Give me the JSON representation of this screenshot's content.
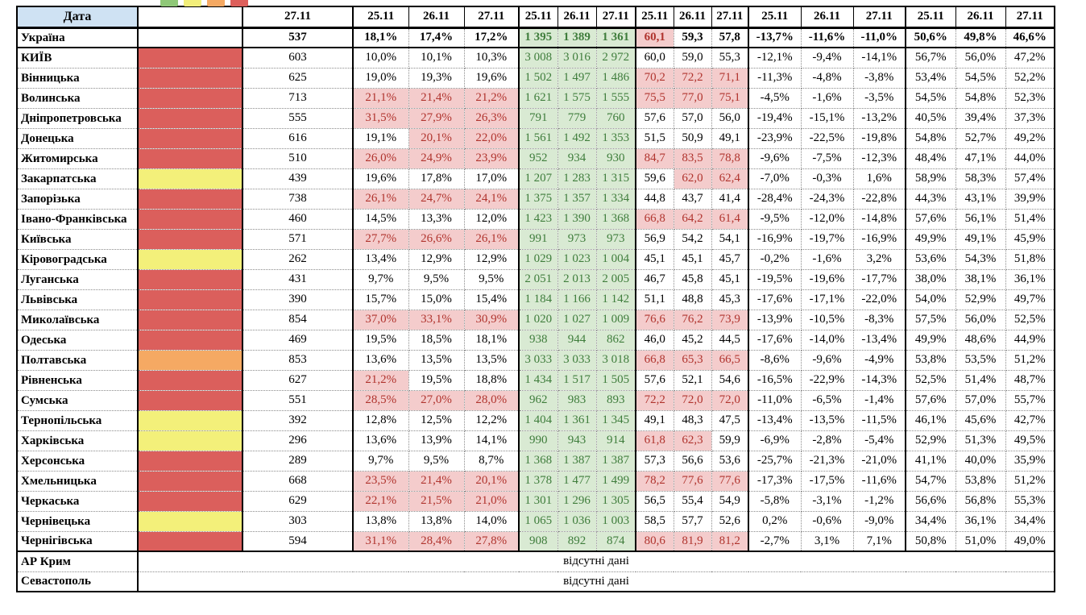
{
  "corner_label": "Дата",
  "no_data_text": "відсутні дані",
  "legend_swatches": [
    {
      "name": "green-legend-swatch",
      "color": "#8fc878"
    },
    {
      "name": "yellow-legend-swatch",
      "color": "#f2ee7a"
    },
    {
      "name": "orange-legend-swatch",
      "color": "#f5a963"
    },
    {
      "name": "red-legend-swatch",
      "color": "#dd5f5b"
    }
  ],
  "status_palette": {
    "red": "#db5f5c",
    "yellow": "#f3f07a",
    "orange": "#f5a963"
  },
  "cell_colors": {
    "header_bg": "#cfe2f3",
    "pink_bg": "#f4cccc",
    "red_text": "#b0342e",
    "green_bg": "#d9ead3",
    "green_text": "#3f7d3c"
  },
  "header": {
    "single_date": "27.11",
    "group_dates": [
      "25.11",
      "26.11",
      "27.11"
    ]
  },
  "rows": [
    {
      "name": "Україна",
      "status": "",
      "val": "537",
      "pct3": [
        "18,1%",
        "17,4%",
        "17,2%"
      ],
      "pct3_hl": [
        0,
        0,
        0
      ],
      "cnt3": [
        "1 395",
        "1 389",
        "1 361"
      ],
      "rate3": [
        "60,1",
        "59,3",
        "57,8"
      ],
      "rate3_hl": [
        1,
        0,
        0
      ],
      "chg3": [
        "-13,7%",
        "-11,6%",
        "-11,0%"
      ],
      "shr3": [
        "50,6%",
        "49,8%",
        "46,6%"
      ]
    },
    {
      "name": "КИЇВ",
      "status": "red",
      "val": "603",
      "pct3": [
        "10,0%",
        "10,1%",
        "10,3%"
      ],
      "pct3_hl": [
        0,
        0,
        0
      ],
      "cnt3": [
        "3 008",
        "3 016",
        "2 972"
      ],
      "rate3": [
        "60,0",
        "59,0",
        "55,3"
      ],
      "rate3_hl": [
        0,
        0,
        0
      ],
      "chg3": [
        "-12,1%",
        "-9,4%",
        "-14,1%"
      ],
      "shr3": [
        "56,7%",
        "56,0%",
        "47,2%"
      ]
    },
    {
      "name": "Вінницька",
      "status": "red",
      "val": "625",
      "pct3": [
        "19,0%",
        "19,3%",
        "19,6%"
      ],
      "pct3_hl": [
        0,
        0,
        0
      ],
      "cnt3": [
        "1 502",
        "1 497",
        "1 486"
      ],
      "rate3": [
        "70,2",
        "72,2",
        "71,1"
      ],
      "rate3_hl": [
        1,
        1,
        1
      ],
      "chg3": [
        "-11,3%",
        "-4,8%",
        "-3,8%"
      ],
      "shr3": [
        "53,4%",
        "54,5%",
        "52,2%"
      ]
    },
    {
      "name": "Волинська",
      "status": "red",
      "val": "713",
      "pct3": [
        "21,1%",
        "21,4%",
        "21,2%"
      ],
      "pct3_hl": [
        1,
        1,
        1
      ],
      "cnt3": [
        "1 621",
        "1 575",
        "1 555"
      ],
      "rate3": [
        "75,5",
        "77,0",
        "75,1"
      ],
      "rate3_hl": [
        1,
        1,
        1
      ],
      "chg3": [
        "-4,5%",
        "-1,6%",
        "-3,5%"
      ],
      "shr3": [
        "54,5%",
        "54,8%",
        "52,3%"
      ]
    },
    {
      "name": "Дніпропетровська",
      "status": "red",
      "val": "555",
      "pct3": [
        "31,5%",
        "27,9%",
        "26,3%"
      ],
      "pct3_hl": [
        1,
        1,
        1
      ],
      "cnt3": [
        "791",
        "779",
        "760"
      ],
      "rate3": [
        "57,6",
        "57,0",
        "56,0"
      ],
      "rate3_hl": [
        0,
        0,
        0
      ],
      "chg3": [
        "-19,4%",
        "-15,1%",
        "-13,2%"
      ],
      "shr3": [
        "40,5%",
        "39,4%",
        "37,3%"
      ]
    },
    {
      "name": "Донецька",
      "status": "red",
      "val": "616",
      "pct3": [
        "19,1%",
        "20,1%",
        "22,0%"
      ],
      "pct3_hl": [
        0,
        1,
        1
      ],
      "cnt3": [
        "1 561",
        "1 492",
        "1 353"
      ],
      "rate3": [
        "51,5",
        "50,9",
        "49,1"
      ],
      "rate3_hl": [
        0,
        0,
        0
      ],
      "chg3": [
        "-23,9%",
        "-22,5%",
        "-19,8%"
      ],
      "shr3": [
        "54,8%",
        "52,7%",
        "49,2%"
      ]
    },
    {
      "name": "Житомирська",
      "status": "red",
      "val": "510",
      "pct3": [
        "26,0%",
        "24,9%",
        "23,9%"
      ],
      "pct3_hl": [
        1,
        1,
        1
      ],
      "cnt3": [
        "952",
        "934",
        "930"
      ],
      "rate3": [
        "84,7",
        "83,5",
        "78,8"
      ],
      "rate3_hl": [
        1,
        1,
        1
      ],
      "chg3": [
        "-9,6%",
        "-7,5%",
        "-12,3%"
      ],
      "shr3": [
        "48,4%",
        "47,1%",
        "44,0%"
      ]
    },
    {
      "name": "Закарпатська",
      "status": "yellow",
      "val": "439",
      "pct3": [
        "19,6%",
        "17,8%",
        "17,0%"
      ],
      "pct3_hl": [
        0,
        0,
        0
      ],
      "cnt3": [
        "1 207",
        "1 283",
        "1 315"
      ],
      "rate3": [
        "59,6",
        "62,0",
        "62,4"
      ],
      "rate3_hl": [
        0,
        1,
        1
      ],
      "chg3": [
        "-7,0%",
        "-0,3%",
        "1,6%"
      ],
      "shr3": [
        "58,9%",
        "58,3%",
        "57,4%"
      ]
    },
    {
      "name": "Запорізька",
      "status": "red",
      "val": "738",
      "pct3": [
        "26,1%",
        "24,7%",
        "24,1%"
      ],
      "pct3_hl": [
        1,
        1,
        1
      ],
      "cnt3": [
        "1 375",
        "1 357",
        "1 334"
      ],
      "rate3": [
        "44,8",
        "43,7",
        "41,4"
      ],
      "rate3_hl": [
        0,
        0,
        0
      ],
      "chg3": [
        "-28,4%",
        "-24,3%",
        "-22,8%"
      ],
      "shr3": [
        "44,3%",
        "43,1%",
        "39,9%"
      ]
    },
    {
      "name": "Івано-Франківська",
      "status": "red",
      "val": "460",
      "pct3": [
        "14,5%",
        "13,3%",
        "12,0%"
      ],
      "pct3_hl": [
        0,
        0,
        0
      ],
      "cnt3": [
        "1 423",
        "1 390",
        "1 368"
      ],
      "rate3": [
        "66,8",
        "64,2",
        "61,4"
      ],
      "rate3_hl": [
        1,
        1,
        1
      ],
      "chg3": [
        "-9,5%",
        "-12,0%",
        "-14,8%"
      ],
      "shr3": [
        "57,6%",
        "56,1%",
        "51,4%"
      ]
    },
    {
      "name": "Київська",
      "status": "red",
      "val": "571",
      "pct3": [
        "27,7%",
        "26,6%",
        "26,1%"
      ],
      "pct3_hl": [
        1,
        1,
        1
      ],
      "cnt3": [
        "991",
        "973",
        "973"
      ],
      "rate3": [
        "56,9",
        "54,2",
        "54,1"
      ],
      "rate3_hl": [
        0,
        0,
        0
      ],
      "chg3": [
        "-16,9%",
        "-19,7%",
        "-16,9%"
      ],
      "shr3": [
        "49,9%",
        "49,1%",
        "45,9%"
      ]
    },
    {
      "name": "Кіровоградська",
      "status": "yellow",
      "val": "262",
      "pct3": [
        "13,4%",
        "12,9%",
        "12,9%"
      ],
      "pct3_hl": [
        0,
        0,
        0
      ],
      "cnt3": [
        "1 029",
        "1 023",
        "1 004"
      ],
      "rate3": [
        "45,1",
        "45,1",
        "45,7"
      ],
      "rate3_hl": [
        0,
        0,
        0
      ],
      "chg3": [
        "-0,2%",
        "-1,6%",
        "3,2%"
      ],
      "shr3": [
        "53,6%",
        "54,3%",
        "51,8%"
      ]
    },
    {
      "name": "Луганська",
      "status": "red",
      "val": "431",
      "pct3": [
        "9,7%",
        "9,5%",
        "9,5%"
      ],
      "pct3_hl": [
        0,
        0,
        0
      ],
      "cnt3": [
        "2 051",
        "2 013",
        "2 005"
      ],
      "rate3": [
        "46,7",
        "45,8",
        "45,1"
      ],
      "rate3_hl": [
        0,
        0,
        0
      ],
      "chg3": [
        "-19,5%",
        "-19,6%",
        "-17,7%"
      ],
      "shr3": [
        "38,0%",
        "38,1%",
        "36,1%"
      ]
    },
    {
      "name": "Львівська",
      "status": "red",
      "val": "390",
      "pct3": [
        "15,7%",
        "15,0%",
        "15,4%"
      ],
      "pct3_hl": [
        0,
        0,
        0
      ],
      "cnt3": [
        "1 184",
        "1 166",
        "1 142"
      ],
      "rate3": [
        "51,1",
        "48,8",
        "45,3"
      ],
      "rate3_hl": [
        0,
        0,
        0
      ],
      "chg3": [
        "-17,6%",
        "-17,1%",
        "-22,0%"
      ],
      "shr3": [
        "54,0%",
        "52,9%",
        "49,7%"
      ]
    },
    {
      "name": "Миколаївська",
      "status": "red",
      "val": "854",
      "pct3": [
        "37,0%",
        "33,1%",
        "30,9%"
      ],
      "pct3_hl": [
        1,
        1,
        1
      ],
      "cnt3": [
        "1 020",
        "1 027",
        "1 009"
      ],
      "rate3": [
        "76,6",
        "76,2",
        "73,9"
      ],
      "rate3_hl": [
        1,
        1,
        1
      ],
      "chg3": [
        "-13,9%",
        "-10,5%",
        "-8,3%"
      ],
      "shr3": [
        "57,5%",
        "56,0%",
        "52,5%"
      ]
    },
    {
      "name": "Одеська",
      "status": "red",
      "val": "469",
      "pct3": [
        "19,5%",
        "18,5%",
        "18,1%"
      ],
      "pct3_hl": [
        0,
        0,
        0
      ],
      "cnt3": [
        "938",
        "944",
        "862"
      ],
      "rate3": [
        "46,0",
        "45,2",
        "44,5"
      ],
      "rate3_hl": [
        0,
        0,
        0
      ],
      "chg3": [
        "-17,6%",
        "-14,0%",
        "-13,4%"
      ],
      "shr3": [
        "49,9%",
        "48,6%",
        "44,9%"
      ]
    },
    {
      "name": "Полтавська",
      "status": "orange",
      "val": "853",
      "pct3": [
        "13,6%",
        "13,5%",
        "13,5%"
      ],
      "pct3_hl": [
        0,
        0,
        0
      ],
      "cnt3": [
        "3 033",
        "3 033",
        "3 018"
      ],
      "rate3": [
        "66,8",
        "65,3",
        "66,5"
      ],
      "rate3_hl": [
        1,
        1,
        1
      ],
      "chg3": [
        "-8,6%",
        "-9,6%",
        "-4,9%"
      ],
      "shr3": [
        "53,8%",
        "53,5%",
        "51,2%"
      ]
    },
    {
      "name": "Рівненська",
      "status": "red",
      "val": "627",
      "pct3": [
        "21,2%",
        "19,5%",
        "18,8%"
      ],
      "pct3_hl": [
        1,
        0,
        0
      ],
      "cnt3": [
        "1 434",
        "1 517",
        "1 505"
      ],
      "rate3": [
        "57,6",
        "52,1",
        "54,6"
      ],
      "rate3_hl": [
        0,
        0,
        0
      ],
      "chg3": [
        "-16,5%",
        "-22,9%",
        "-14,3%"
      ],
      "shr3": [
        "52,5%",
        "51,4%",
        "48,7%"
      ]
    },
    {
      "name": "Сумська",
      "status": "red",
      "val": "551",
      "pct3": [
        "28,5%",
        "27,0%",
        "28,0%"
      ],
      "pct3_hl": [
        1,
        1,
        1
      ],
      "cnt3": [
        "962",
        "983",
        "893"
      ],
      "rate3": [
        "72,2",
        "72,0",
        "72,0"
      ],
      "rate3_hl": [
        1,
        1,
        1
      ],
      "chg3": [
        "-11,0%",
        "-6,5%",
        "-1,4%"
      ],
      "shr3": [
        "57,6%",
        "57,0%",
        "55,7%"
      ]
    },
    {
      "name": "Тернопільська",
      "status": "yellow",
      "val": "392",
      "pct3": [
        "12,8%",
        "12,5%",
        "12,2%"
      ],
      "pct3_hl": [
        0,
        0,
        0
      ],
      "cnt3": [
        "1 404",
        "1 361",
        "1 345"
      ],
      "rate3": [
        "49,1",
        "48,3",
        "47,5"
      ],
      "rate3_hl": [
        0,
        0,
        0
      ],
      "chg3": [
        "-13,4%",
        "-13,5%",
        "-11,5%"
      ],
      "shr3": [
        "46,1%",
        "45,6%",
        "42,7%"
      ]
    },
    {
      "name": "Харківська",
      "status": "yellow",
      "val": "296",
      "pct3": [
        "13,6%",
        "13,9%",
        "14,1%"
      ],
      "pct3_hl": [
        0,
        0,
        0
      ],
      "cnt3": [
        "990",
        "943",
        "914"
      ],
      "rate3": [
        "61,8",
        "62,3",
        "59,9"
      ],
      "rate3_hl": [
        1,
        1,
        0
      ],
      "chg3": [
        "-6,9%",
        "-2,8%",
        "-5,4%"
      ],
      "shr3": [
        "52,9%",
        "51,3%",
        "49,5%"
      ]
    },
    {
      "name": "Херсонська",
      "status": "red",
      "val": "289",
      "pct3": [
        "9,7%",
        "9,5%",
        "8,7%"
      ],
      "pct3_hl": [
        0,
        0,
        0
      ],
      "cnt3": [
        "1 368",
        "1 387",
        "1 387"
      ],
      "rate3": [
        "57,3",
        "56,6",
        "53,6"
      ],
      "rate3_hl": [
        0,
        0,
        0
      ],
      "chg3": [
        "-25,7%",
        "-21,3%",
        "-21,0%"
      ],
      "shr3": [
        "41,1%",
        "40,0%",
        "35,9%"
      ]
    },
    {
      "name": "Хмельницька",
      "status": "red",
      "val": "668",
      "pct3": [
        "23,5%",
        "21,4%",
        "20,1%"
      ],
      "pct3_hl": [
        1,
        1,
        1
      ],
      "cnt3": [
        "1 378",
        "1 477",
        "1 499"
      ],
      "rate3": [
        "78,2",
        "77,6",
        "77,6"
      ],
      "rate3_hl": [
        1,
        1,
        1
      ],
      "chg3": [
        "-17,3%",
        "-17,5%",
        "-11,6%"
      ],
      "shr3": [
        "54,7%",
        "53,8%",
        "51,2%"
      ]
    },
    {
      "name": "Черкаська",
      "status": "red",
      "val": "629",
      "pct3": [
        "22,1%",
        "21,5%",
        "21,0%"
      ],
      "pct3_hl": [
        1,
        1,
        1
      ],
      "cnt3": [
        "1 301",
        "1 296",
        "1 305"
      ],
      "rate3": [
        "56,5",
        "55,4",
        "54,9"
      ],
      "rate3_hl": [
        0,
        0,
        0
      ],
      "chg3": [
        "-5,8%",
        "-3,1%",
        "-1,2%"
      ],
      "shr3": [
        "56,6%",
        "56,8%",
        "55,3%"
      ]
    },
    {
      "name": "Чернівецька",
      "status": "yellow",
      "val": "303",
      "pct3": [
        "13,8%",
        "13,8%",
        "14,0%"
      ],
      "pct3_hl": [
        0,
        0,
        0
      ],
      "cnt3": [
        "1 065",
        "1 036",
        "1 003"
      ],
      "rate3": [
        "58,5",
        "57,7",
        "52,6"
      ],
      "rate3_hl": [
        0,
        0,
        0
      ],
      "chg3": [
        "0,2%",
        "-0,6%",
        "-9,0%"
      ],
      "shr3": [
        "34,4%",
        "36,1%",
        "34,4%"
      ]
    },
    {
      "name": "Чернігівська",
      "status": "red",
      "val": "594",
      "pct3": [
        "31,1%",
        "28,4%",
        "27,8%"
      ],
      "pct3_hl": [
        1,
        1,
        1
      ],
      "cnt3": [
        "908",
        "892",
        "874"
      ],
      "rate3": [
        "80,6",
        "81,9",
        "81,2"
      ],
      "rate3_hl": [
        1,
        1,
        1
      ],
      "chg3": [
        "-2,7%",
        "3,1%",
        "7,1%"
      ],
      "shr3": [
        "50,8%",
        "51,0%",
        "49,0%"
      ]
    },
    {
      "name": "АР Крим",
      "no_data": true
    },
    {
      "name": "Севастополь",
      "no_data": true
    }
  ]
}
